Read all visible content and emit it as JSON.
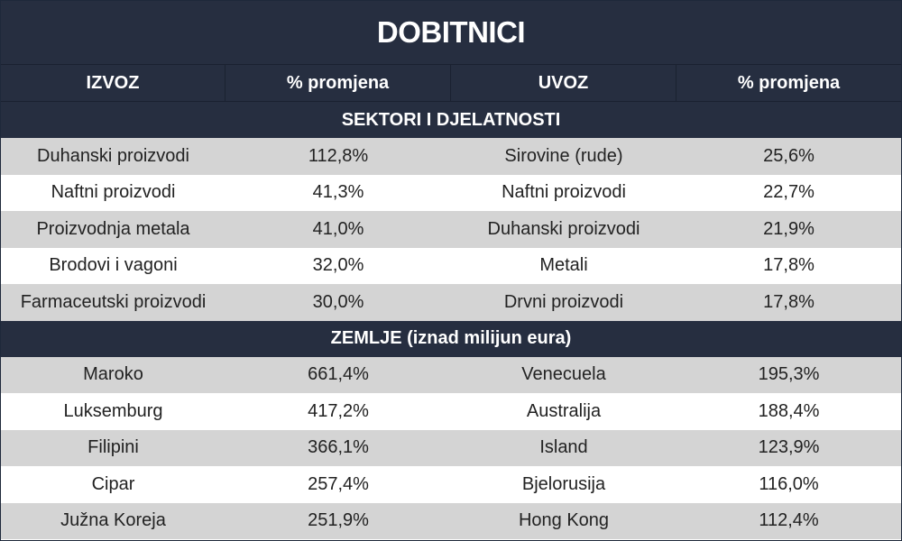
{
  "title": "DOBITNICI",
  "headers": [
    "IZVOZ",
    "% promjena",
    "UVOZ",
    "% promjena"
  ],
  "sections": [
    {
      "label": "SEKTORI I DJELATNOSTI",
      "rows": [
        [
          "Duhanski proizvodi",
          "112,8%",
          "Sirovine (rude)",
          "25,6%"
        ],
        [
          "Naftni proizvodi",
          "41,3%",
          "Naftni proizvodi",
          "22,7%"
        ],
        [
          "Proizvodnja metala",
          "41,0%",
          "Duhanski proizvodi",
          "21,9%"
        ],
        [
          "Brodovi i vagoni",
          "32,0%",
          "Metali",
          "17,8%"
        ],
        [
          "Farmaceutski proizvodi",
          "30,0%",
          "Drvni proizvodi",
          "17,8%"
        ]
      ]
    },
    {
      "label": "ZEMLJE (iznad milijun eura)",
      "rows": [
        [
          "Maroko",
          "661,4%",
          "Venecuela",
          "195,3%"
        ],
        [
          "Luksemburg",
          "417,2%",
          "Australija",
          "188,4%"
        ],
        [
          "Filipini",
          "366,1%",
          "Island",
          "123,9%"
        ],
        [
          "Cipar",
          "257,4%",
          "Bjelorusija",
          "116,0%"
        ],
        [
          "Južna Koreja",
          "251,9%",
          "Hong Kong",
          "112,4%"
        ]
      ]
    }
  ]
}
